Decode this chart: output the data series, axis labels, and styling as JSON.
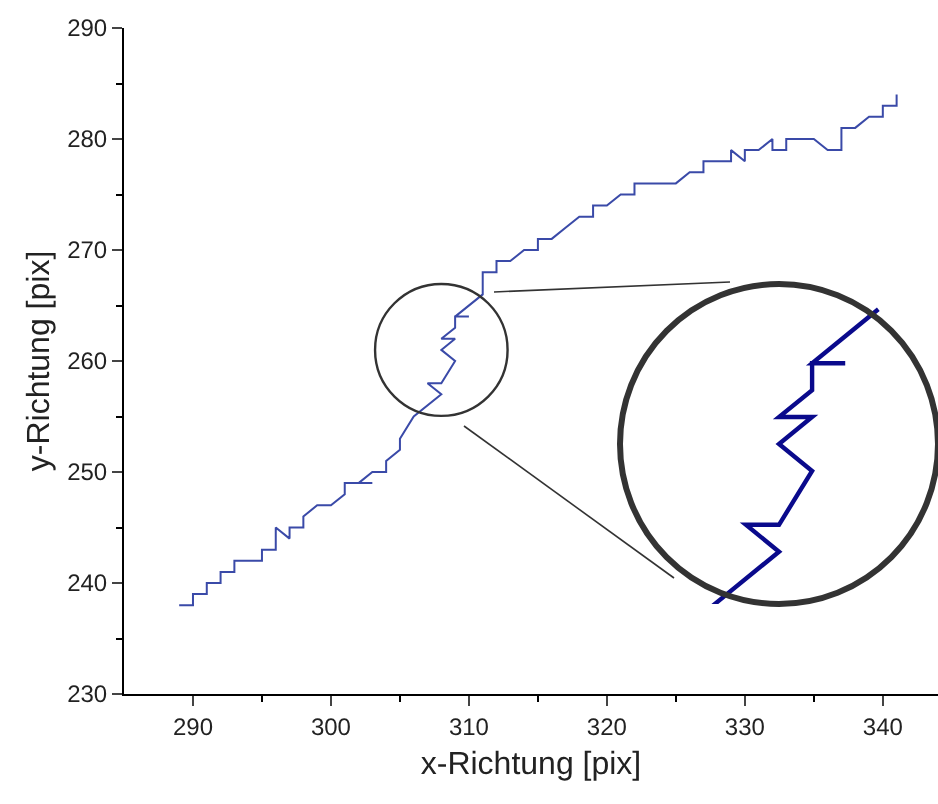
{
  "chart_data": {
    "type": "line",
    "xlabel": "x-Richtung [pix]",
    "ylabel": "y-Richtung [pix]",
    "xlim": [
      285,
      344
    ],
    "ylim": [
      230,
      290
    ],
    "xticks": [
      290,
      300,
      310,
      320,
      330,
      340
    ],
    "yticks": [
      230,
      240,
      250,
      260,
      270,
      280,
      290
    ],
    "marker": "none",
    "line_style": "solid",
    "series": [
      {
        "color": "#3a4aa8",
        "x": [
          289,
          290,
          290,
          291,
          291,
          292,
          292,
          293,
          293,
          295,
          295,
          296,
          296,
          297,
          297,
          298,
          298,
          299,
          300,
          301,
          301,
          303,
          302,
          303,
          304,
          304,
          305,
          305,
          306,
          308,
          307,
          308,
          309,
          308,
          309,
          308,
          309,
          309,
          310,
          309,
          311,
          311,
          312,
          312,
          313,
          314,
          315,
          315,
          316,
          317,
          318,
          319,
          319,
          320,
          321,
          322,
          322,
          325,
          326,
          327,
          327,
          329,
          329,
          330,
          330,
          331,
          332,
          332,
          333,
          333,
          335,
          336,
          337,
          337,
          338,
          339,
          340,
          340,
          341,
          341
        ],
        "values": [
          238,
          238,
          239,
          239,
          240,
          240,
          241,
          241,
          242,
          242,
          243,
          243,
          245,
          244,
          245,
          245,
          246,
          247,
          247,
          248,
          249,
          249,
          249,
          250,
          250,
          251,
          252,
          253,
          255,
          257,
          258,
          258,
          260,
          261,
          262,
          262,
          263,
          264,
          264,
          264,
          266,
          268,
          268,
          269,
          269,
          270,
          270,
          271,
          271,
          272,
          273,
          273,
          274,
          274,
          275,
          275,
          276,
          276,
          277,
          277,
          278,
          278,
          279,
          278,
          279,
          279,
          280,
          279,
          279,
          280,
          280,
          279,
          279,
          281,
          281,
          282,
          282,
          283,
          283,
          284
        ]
      }
    ]
  }
}
